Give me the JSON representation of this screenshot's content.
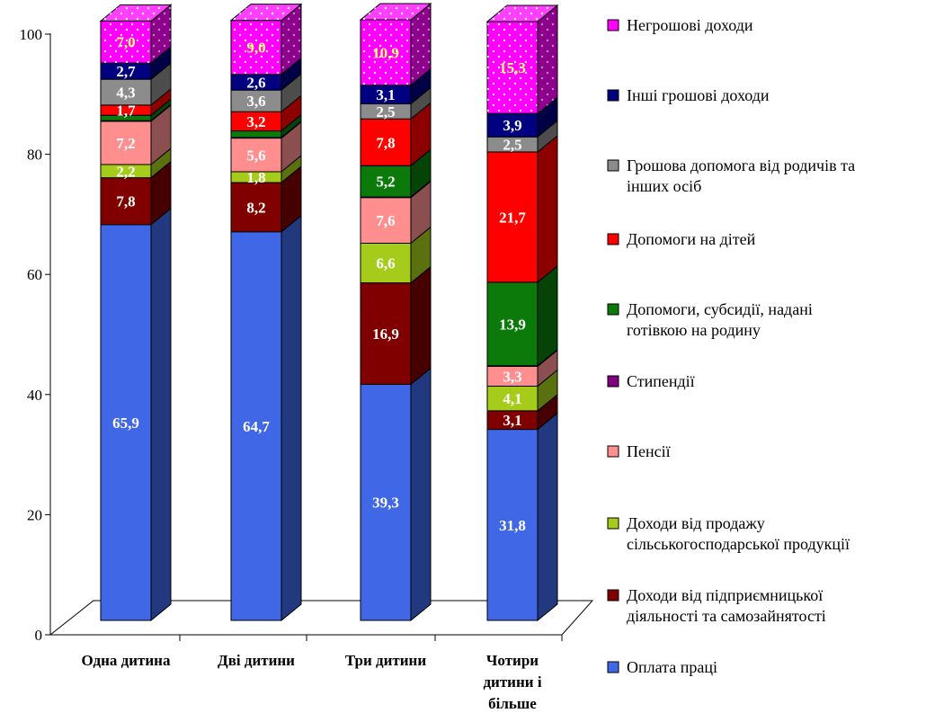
{
  "chart_data": {
    "type": "bar",
    "stacked": true,
    "three_d": true,
    "title": "",
    "xlabel": "",
    "ylabel": "",
    "ylim": [
      0,
      100
    ],
    "yticks": [
      "0",
      "20",
      "40",
      "60",
      "80",
      "100"
    ],
    "categories": [
      [
        "Одна дитина"
      ],
      [
        "Дві дитини"
      ],
      [
        "Три дитини"
      ],
      [
        "Чотири",
        "дитини і",
        "більше"
      ]
    ],
    "legend_position": "right",
    "series": [
      {
        "name": [
          "Оплата праці"
        ],
        "color": "#3F67E6",
        "values": [
          65.9,
          64.7,
          39.3,
          31.8
        ],
        "labels": [
          "65,9",
          "64,7",
          "39,3",
          "31,8"
        ],
        "label_color": "#ffffff"
      },
      {
        "name": [
          "Доходи від підприємницької",
          "діяльності та самозайнятості"
        ],
        "color": "#800000",
        "values": [
          7.8,
          8.2,
          16.9,
          3.1
        ],
        "labels": [
          "7,8",
          "8,2",
          "16,9",
          "3,1"
        ],
        "label_color": "#ffffff"
      },
      {
        "name": [
          "Доходи від продажу",
          "сільськогосподарської продукції"
        ],
        "color": "#A5CC1A",
        "values": [
          2.2,
          1.8,
          6.6,
          4.1
        ],
        "labels": [
          "2,2",
          "1,8",
          "6,6",
          "4,1"
        ],
        "label_color": "#ffffff"
      },
      {
        "name": [
          "Пенсії"
        ],
        "color": "#FF8F8F",
        "values": [
          7.2,
          5.6,
          7.6,
          3.3
        ],
        "labels": [
          "7,2",
          "5,6",
          "7,6",
          "3,3"
        ],
        "label_color": "#ffffff"
      },
      {
        "name": [
          "Стипендії"
        ],
        "color": "#800080",
        "values": [
          0.1,
          0.1,
          0.1,
          0.1
        ],
        "labels": [
          "",
          "",
          "",
          ""
        ],
        "label_color": "#ffffff"
      },
      {
        "name": [
          "Допомоги, субсидії, надані",
          "готівкою на родину"
        ],
        "color": "#0B7A0B",
        "values": [
          0.9,
          1.1,
          5.2,
          13.9
        ],
        "labels": [
          "",
          "",
          "5,2",
          "13,9"
        ],
        "label_color": "#ffffff"
      },
      {
        "name": [
          "Допомоги на дітей"
        ],
        "color": "#FF0000",
        "values": [
          1.7,
          3.2,
          7.8,
          21.7
        ],
        "labels": [
          "1,7",
          "3,2",
          "7,8",
          "21,7"
        ],
        "label_color": "#ffffff"
      },
      {
        "name": [
          "Грошова допомога від родичів та",
          "інших осіб"
        ],
        "color": "#8C8C8C",
        "values": [
          4.3,
          3.6,
          2.5,
          2.5
        ],
        "labels": [
          "4,3",
          "3,6",
          "2,5",
          "2,5"
        ],
        "label_color": "#ffffff"
      },
      {
        "name": [
          "Інші грошові доходи"
        ],
        "color": "#000080",
        "values": [
          2.7,
          2.6,
          3.1,
          3.9
        ],
        "labels": [
          "2,7",
          "2,6",
          "3,1",
          "3,9"
        ],
        "label_color": "#ffffff"
      },
      {
        "name": [
          "Негрошові доходи"
        ],
        "color": "#FF00FF",
        "values": [
          7.0,
          9.0,
          10.9,
          15.3
        ],
        "labels": [
          "7,0",
          "9,0",
          "10,9",
          "15,3"
        ],
        "label_color": "#FFFF66"
      }
    ]
  }
}
